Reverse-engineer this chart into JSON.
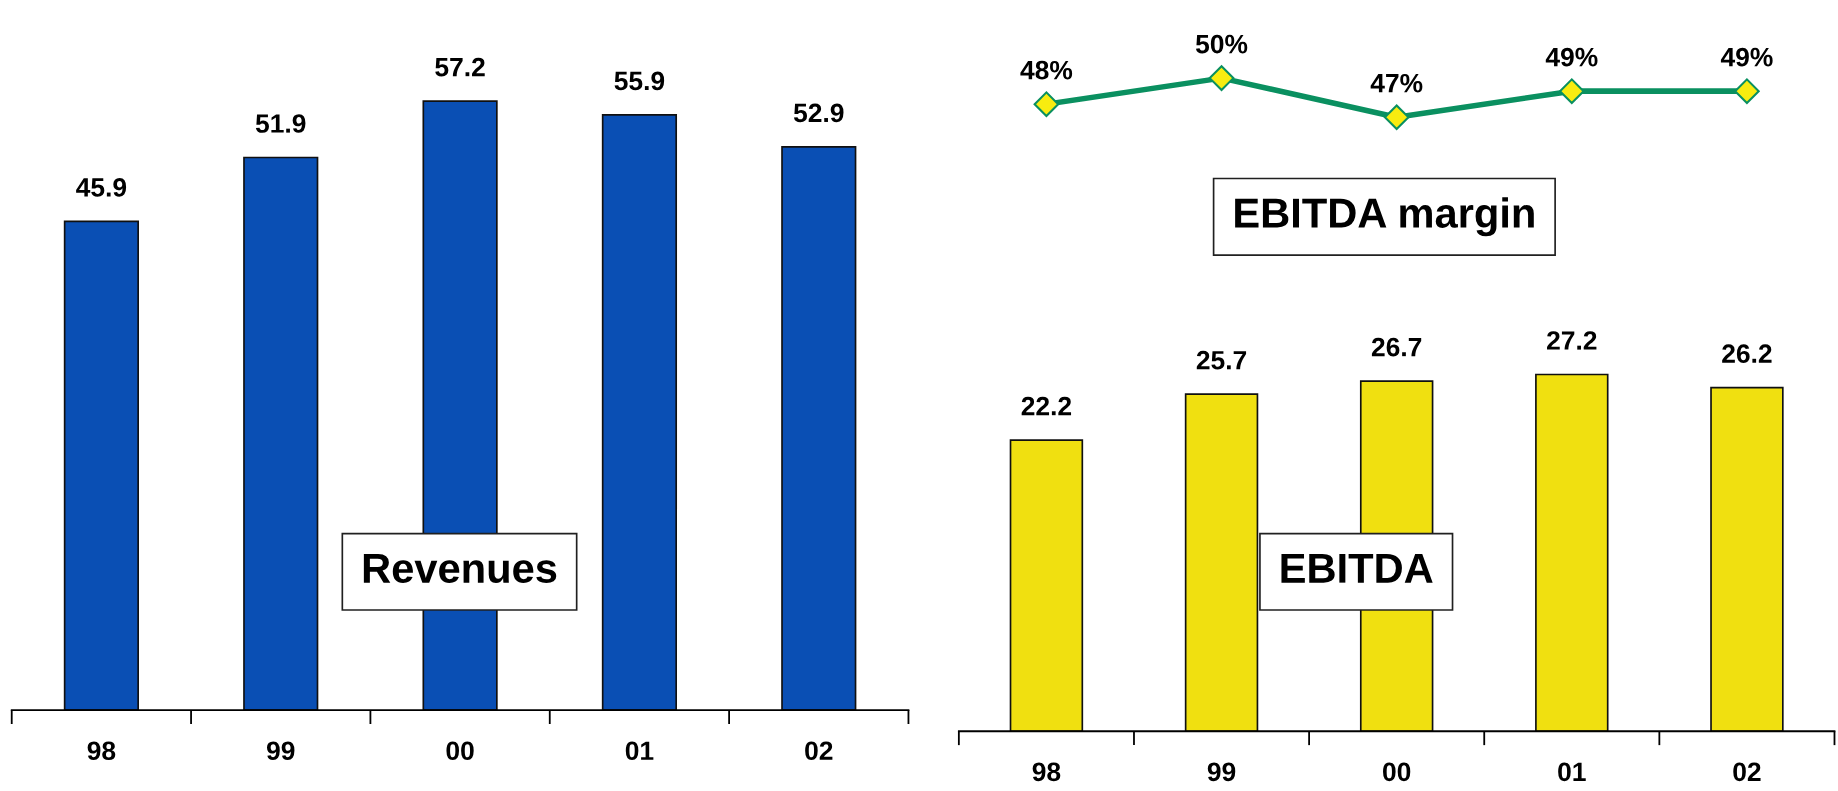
{
  "chart_data": [
    {
      "type": "bar",
      "categories": [
        "98",
        "99",
        "00",
        "01",
        "02"
      ],
      "values": [
        45.9,
        51.9,
        57.2,
        55.9,
        52.9
      ],
      "color": "#0a4fb4",
      "data_labels": true,
      "tick_labels": "x",
      "grid": false,
      "legend": false,
      "annotations": [
        "Revenues"
      ]
    },
    {
      "type": "line",
      "categories": [
        null,
        null,
        null,
        null,
        null
      ],
      "values": [
        48,
        50,
        47,
        49,
        49
      ],
      "value_labels": [
        "48%",
        "50%",
        "47%",
        "49%",
        "49%"
      ],
      "color": "#0a9060",
      "marker": "diamond",
      "line_style": "solid",
      "tick_labels": false,
      "grid": false,
      "legend": false,
      "annotations": [
        "EBITDA margin"
      ]
    },
    {
      "type": "bar",
      "categories": [
        "98",
        "99",
        "00",
        "01",
        "02"
      ],
      "values": [
        22.2,
        25.7,
        26.7,
        27.2,
        26.2
      ],
      "color": "#f0e010",
      "data_labels": true,
      "tick_labels": "x",
      "grid": false,
      "legend": false,
      "annotations": [
        "EBITDA"
      ]
    }
  ]
}
